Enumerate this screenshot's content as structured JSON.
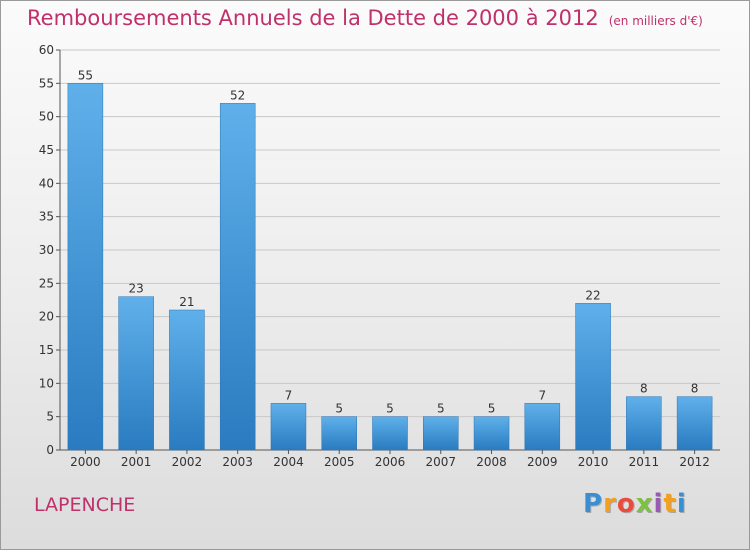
{
  "header": {
    "title": "Remboursements Annuels de la Dette de 2000 à 2012",
    "unit": "(en milliers d'€)"
  },
  "commune": "LAPENCHE",
  "logo": {
    "letters": [
      "P",
      "r",
      "o",
      "x",
      "i",
      "t",
      "i"
    ],
    "colors": [
      "#3a8fd4",
      "#f2a01e",
      "#e84c3d",
      "#7cc142",
      "#9b59b6",
      "#f2a01e",
      "#3a8fd4"
    ]
  },
  "colors": {
    "bar_top": "#5fb0ea",
    "bar_bottom": "#2a7bc0",
    "grid": "#c8c8c8",
    "accent": "#c0306a"
  },
  "chart_data": {
    "type": "bar",
    "categories": [
      "2000",
      "2001",
      "2002",
      "2003",
      "2004",
      "2005",
      "2006",
      "2007",
      "2008",
      "2009",
      "2010",
      "2011",
      "2012"
    ],
    "values": [
      55,
      23,
      21,
      52,
      7,
      5,
      5,
      5,
      5,
      7,
      22,
      8,
      8
    ],
    "title": "Remboursements Annuels de la Dette de 2000 à 2012",
    "xlabel": "",
    "ylabel": "",
    "ylim": [
      0,
      60
    ],
    "yticks": [
      0,
      5,
      10,
      15,
      20,
      25,
      30,
      35,
      40,
      45,
      50,
      55,
      60
    ],
    "grid": true,
    "legend": "none"
  }
}
